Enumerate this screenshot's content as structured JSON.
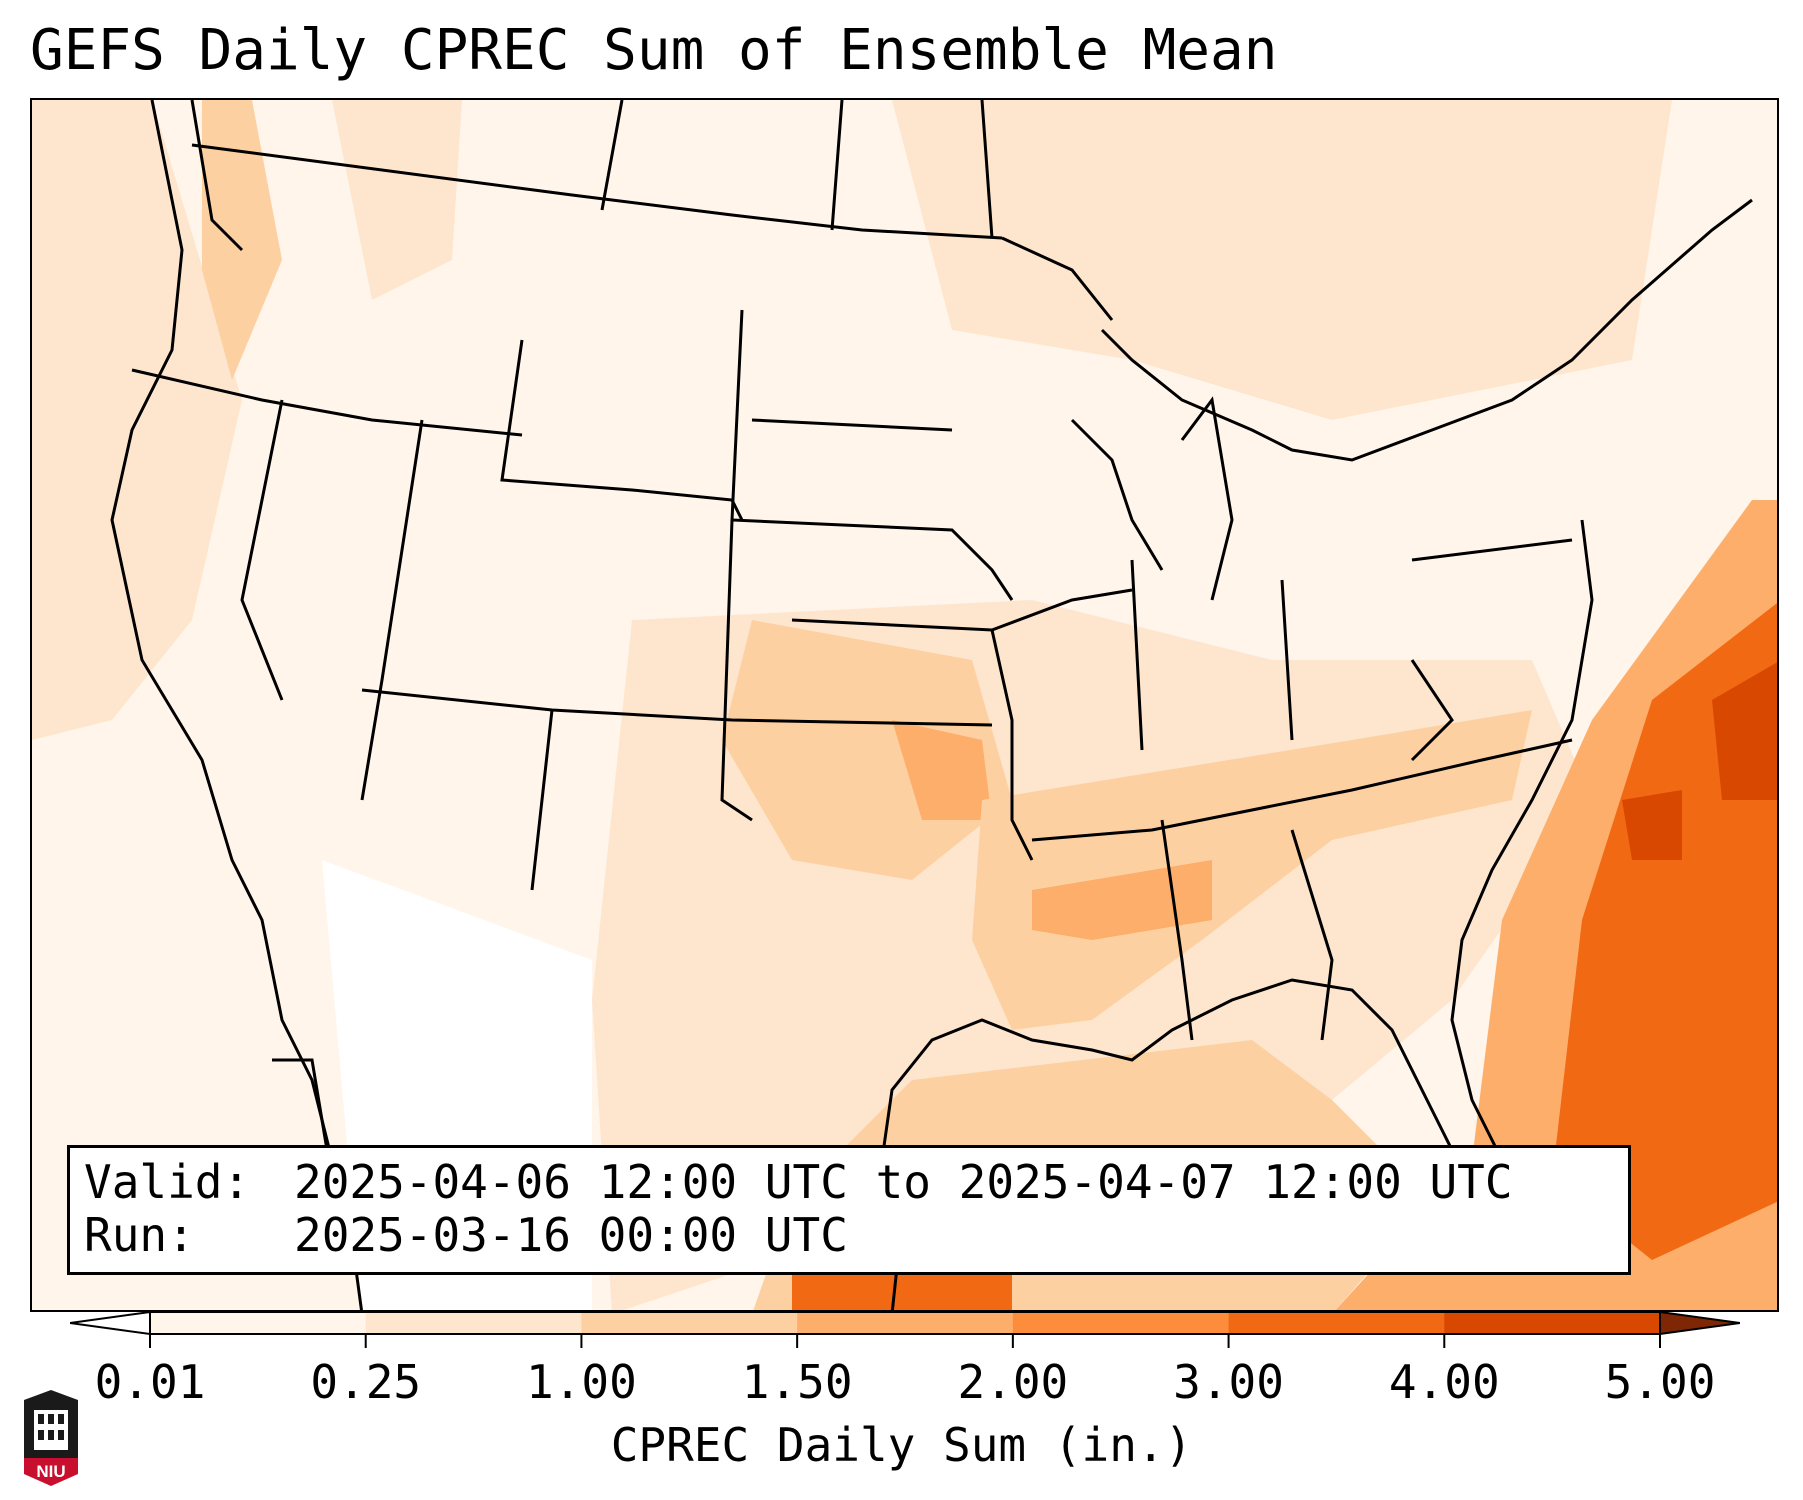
{
  "title": "GEFS Daily CPREC Sum of Ensemble Mean",
  "info": {
    "valid_label": "Valid:",
    "valid_value": "2025-04-06 12:00 UTC to 2025-04-07 12:00 UTC",
    "run_label": "Run:",
    "run_value": "2025-03-16 00:00 UTC"
  },
  "colorbar": {
    "label": "CPREC Daily Sum (in.)",
    "ticks": [
      "0.01",
      "0.25",
      "1.00",
      "1.50",
      "2.00",
      "3.00",
      "4.00",
      "5.00"
    ],
    "colors": [
      "#fff5eb",
      "#fee6ce",
      "#fdd0a2",
      "#fdae6b",
      "#fd8d3c",
      "#f16913",
      "#d94801",
      "#a63603"
    ],
    "under_color": "#ffffff",
    "over_color": "#7f2704"
  },
  "logo": {
    "text": "NIU"
  }
}
